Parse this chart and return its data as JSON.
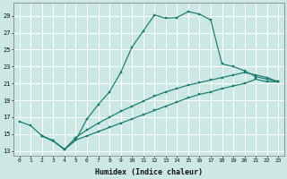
{
  "xlabel": "Humidex (Indice chaleur)",
  "bg_color": "#cce8e4",
  "line_color": "#1a7a6e",
  "grid_color": "#ffffff",
  "xlim": [
    -0.5,
    23.5
  ],
  "ylim": [
    12.5,
    30.5
  ],
  "yticks": [
    13,
    15,
    17,
    19,
    21,
    23,
    25,
    27,
    29
  ],
  "xticks": [
    0,
    1,
    2,
    3,
    4,
    5,
    6,
    7,
    8,
    9,
    10,
    11,
    12,
    13,
    14,
    15,
    16,
    17,
    18,
    19,
    20,
    21,
    22,
    23
  ],
  "series": [
    {
      "x": [
        0,
        1,
        2,
        3,
        4,
        5,
        6,
        7,
        8,
        9,
        10,
        11,
        12,
        13,
        14,
        15,
        16,
        17,
        18,
        19,
        20,
        21,
        22,
        23
      ],
      "y": [
        16.5,
        16.0,
        14.8,
        14.2,
        13.2,
        14.3,
        16.8,
        18.5,
        20.0,
        22.3,
        25.3,
        27.2,
        29.1,
        28.7,
        28.8,
        29.5,
        29.2,
        28.5,
        23.3,
        23.0,
        22.5,
        21.8,
        21.5,
        21.2
      ]
    },
    {
      "x": [
        2,
        3,
        4,
        5,
        6,
        7,
        8,
        9,
        10,
        11,
        12,
        13,
        14,
        15,
        16,
        17,
        18,
        19,
        20,
        21,
        22,
        23
      ],
      "y": [
        14.8,
        14.2,
        13.2,
        14.6,
        15.5,
        16.3,
        17.0,
        17.7,
        18.3,
        18.9,
        19.5,
        20.0,
        20.4,
        20.8,
        21.1,
        21.4,
        21.7,
        22.0,
        22.3,
        22.0,
        21.7,
        21.2
      ]
    },
    {
      "x": [
        2,
        3,
        4,
        5,
        6,
        7,
        8,
        9,
        10,
        11,
        12,
        13,
        14,
        15,
        16,
        17,
        18,
        19,
        20,
        21,
        22,
        23
      ],
      "y": [
        14.8,
        14.2,
        13.2,
        14.3,
        14.8,
        15.3,
        15.8,
        16.3,
        16.8,
        17.3,
        17.8,
        18.3,
        18.8,
        19.3,
        19.7,
        20.0,
        20.4,
        20.7,
        21.0,
        21.5,
        21.2,
        21.2
      ]
    }
  ]
}
